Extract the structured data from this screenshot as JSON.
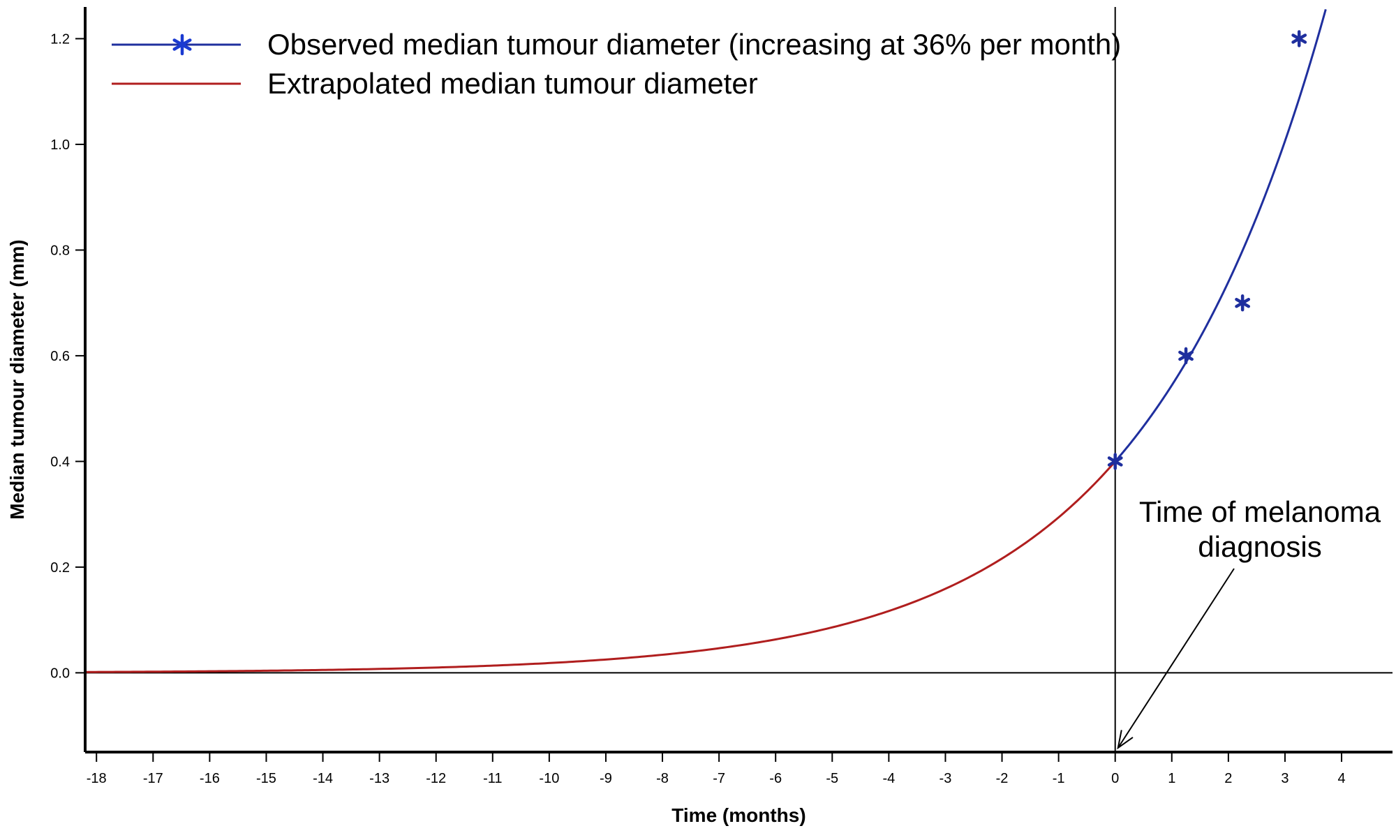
{
  "chart_data": {
    "type": "line",
    "title": "",
    "xlabel": "Time (months)",
    "ylabel": "Median tumour diameter (mm)",
    "xlim": [
      -18.2,
      4.9
    ],
    "ylim": [
      -0.15,
      1.26
    ],
    "x_ticks": [
      "-18",
      "-17",
      "-16",
      "-15",
      "-14",
      "-13",
      "-12",
      "-11",
      "-10",
      "-9",
      "-8",
      "-7",
      "-6",
      "-5",
      "-4",
      "-3",
      "-2",
      "-1",
      "0",
      "1",
      "2",
      "3",
      "4"
    ],
    "x_tick_values": [
      -18,
      -17,
      -16,
      -15,
      -14,
      -13,
      -12,
      -11,
      -10,
      -9,
      -8,
      -7,
      -6,
      -5,
      -4,
      -3,
      -2,
      -1,
      0,
      1,
      2,
      3,
      4
    ],
    "y_ticks": [
      "0.0",
      "0.2",
      "0.4",
      "0.6",
      "0.8",
      "1.0",
      "1.2"
    ],
    "y_tick_values": [
      0.0,
      0.2,
      0.4,
      0.6,
      0.8,
      1.0,
      1.2
    ],
    "grid": false,
    "legend_position": "top-left",
    "series": [
      {
        "name": "Observed median tumour diameter (increasing at 36% per month)",
        "kind": "observed",
        "color": "#1f2f9e",
        "marker": "star",
        "curve": {
          "base": 0.4,
          "growth_rate": 0.36,
          "x_start": 0,
          "x_end": 3.72
        },
        "points": [
          {
            "x": 0,
            "y": 0.4
          },
          {
            "x": 1.25,
            "y": 0.6
          },
          {
            "x": 2.25,
            "y": 0.7
          },
          {
            "x": 3.25,
            "y": 1.2
          }
        ]
      },
      {
        "name": "Extrapolated median tumour diameter",
        "kind": "extrapolated",
        "color": "#b01e1e",
        "marker": "none",
        "curve": {
          "base": 0.4,
          "growth_rate": 0.36,
          "x_start": -18.2,
          "x_end": 0
        }
      }
    ],
    "reference_lines": {
      "vertical_x": 0,
      "horizontal_y": 0
    },
    "annotation": {
      "line1": "Time of melanoma",
      "line2": "diagnosis",
      "arrow_from": {
        "x": 2.1,
        "y": 0.2
      },
      "arrow_to": {
        "x": 0.05,
        "y": -0.15
      }
    }
  }
}
